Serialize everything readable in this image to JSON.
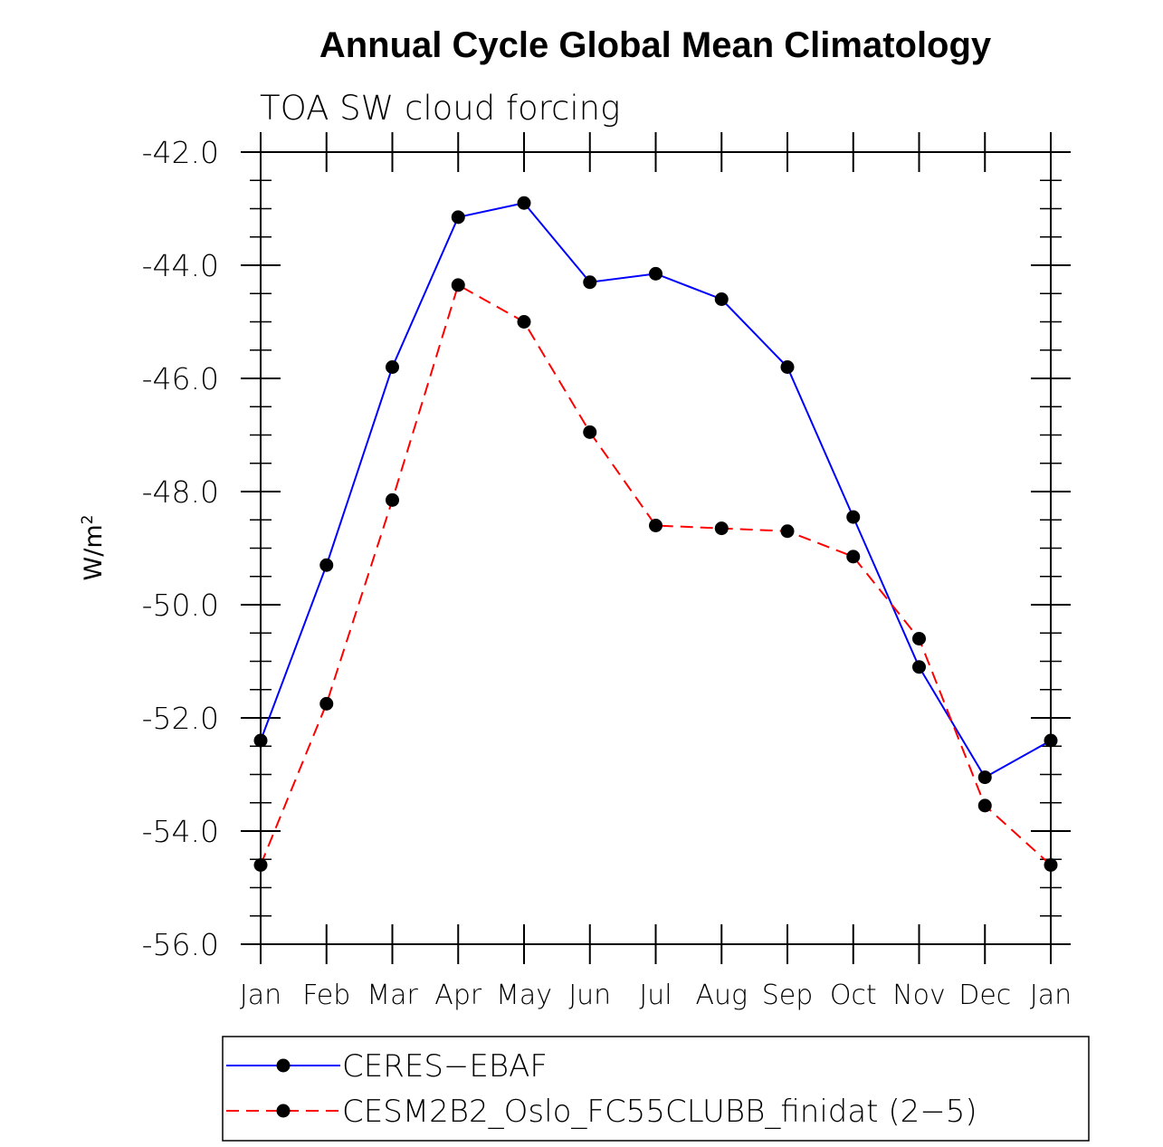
{
  "chart_data": {
    "type": "line",
    "title": "Annual Cycle Global Mean Climatology",
    "subtitle": "TOA SW cloud forcing",
    "ylabel": "W/m",
    "ylabel_superscript": "2",
    "ylim": [
      -56.0,
      -42.0
    ],
    "yticks": [
      "-42.0",
      "-44.0",
      "-46.0",
      "-48.0",
      "-50.0",
      "-52.0",
      "-54.0",
      "-56.0"
    ],
    "ytick_values": [
      -42,
      -44,
      -46,
      -48,
      -50,
      -52,
      -54,
      -56
    ],
    "categories": [
      "Jan",
      "Feb",
      "Mar",
      "Apr",
      "May",
      "Jun",
      "Jul",
      "Aug",
      "Sep",
      "Oct",
      "Nov",
      "Dec",
      "Jan"
    ],
    "series": [
      {
        "name": "CERES−EBAF",
        "color": "#0000ff",
        "dashed": false,
        "values": [
          -52.4,
          -49.3,
          -45.8,
          -43.15,
          -42.9,
          -44.3,
          -44.15,
          -44.6,
          -45.8,
          -48.45,
          -51.1,
          -53.05,
          -52.4
        ]
      },
      {
        "name": "CESM2B2_Oslo_FC55CLUBB_finidat (2−5)",
        "color": "#ff0000",
        "dashed": true,
        "values": [
          -54.6,
          -51.75,
          -48.15,
          -44.35,
          -45.0,
          -46.95,
          -48.6,
          -48.65,
          -48.7,
          -49.15,
          -50.6,
          -53.55,
          -54.6
        ]
      }
    ]
  }
}
